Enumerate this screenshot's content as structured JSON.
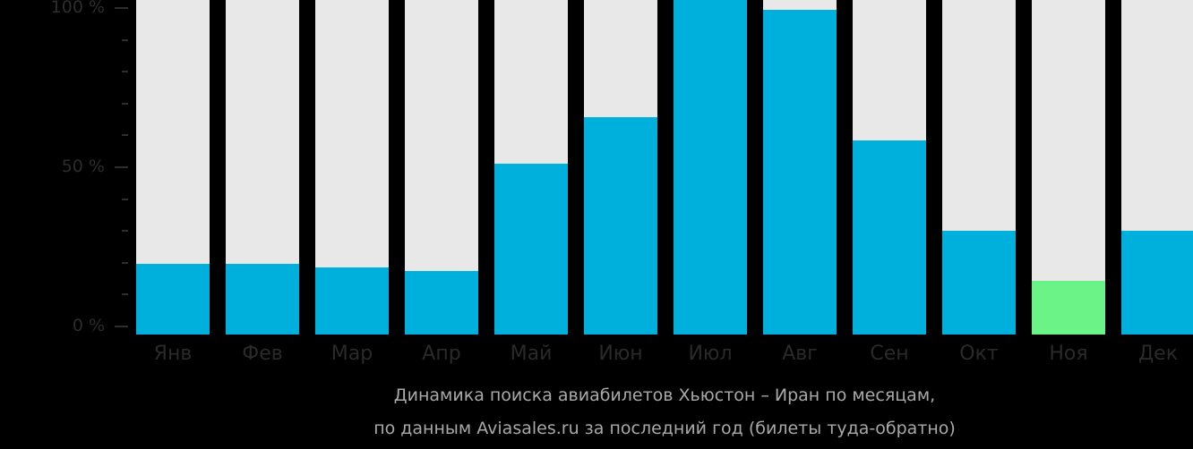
{
  "chart_data": {
    "type": "bar",
    "title": "Динамика поиска авиабилетов Хьюстон – Иран по месяцам, по данным Aviasales.ru за последний год (билеты туда-обратно)",
    "xlabel": "",
    "ylabel": "",
    "ylim": [
      0,
      100
    ],
    "grid": false,
    "legend": null,
    "categories": [
      "Янв",
      "Фев",
      "Мар",
      "Апр",
      "Май",
      "Июн",
      "Июл",
      "Авг",
      "Сен",
      "Окт",
      "Ноя",
      "Дек"
    ],
    "values": [
      21,
      21,
      20,
      19,
      51,
      65,
      100,
      97,
      58,
      31,
      16,
      31
    ],
    "y_ticks": [
      "0 %",
      "50 %",
      "100 %"
    ],
    "colors": {
      "default": "#00b0dc",
      "lowest": "#6cf387",
      "track": "#e8e8e8",
      "background": "#000000"
    },
    "highlight_index": 10
  },
  "axis": {
    "labels": [
      {
        "text": "100 %",
        "value": 100
      },
      {
        "text": "50 %",
        "value": 50
      },
      {
        "text": "0 %",
        "value": 0
      }
    ]
  },
  "caption": {
    "line1": "Динамика поиска авиабилетов Хьюстон – Иран по месяцам,",
    "line2": "по данным Aviasales.ru за последний год (билеты туда-обратно)"
  }
}
